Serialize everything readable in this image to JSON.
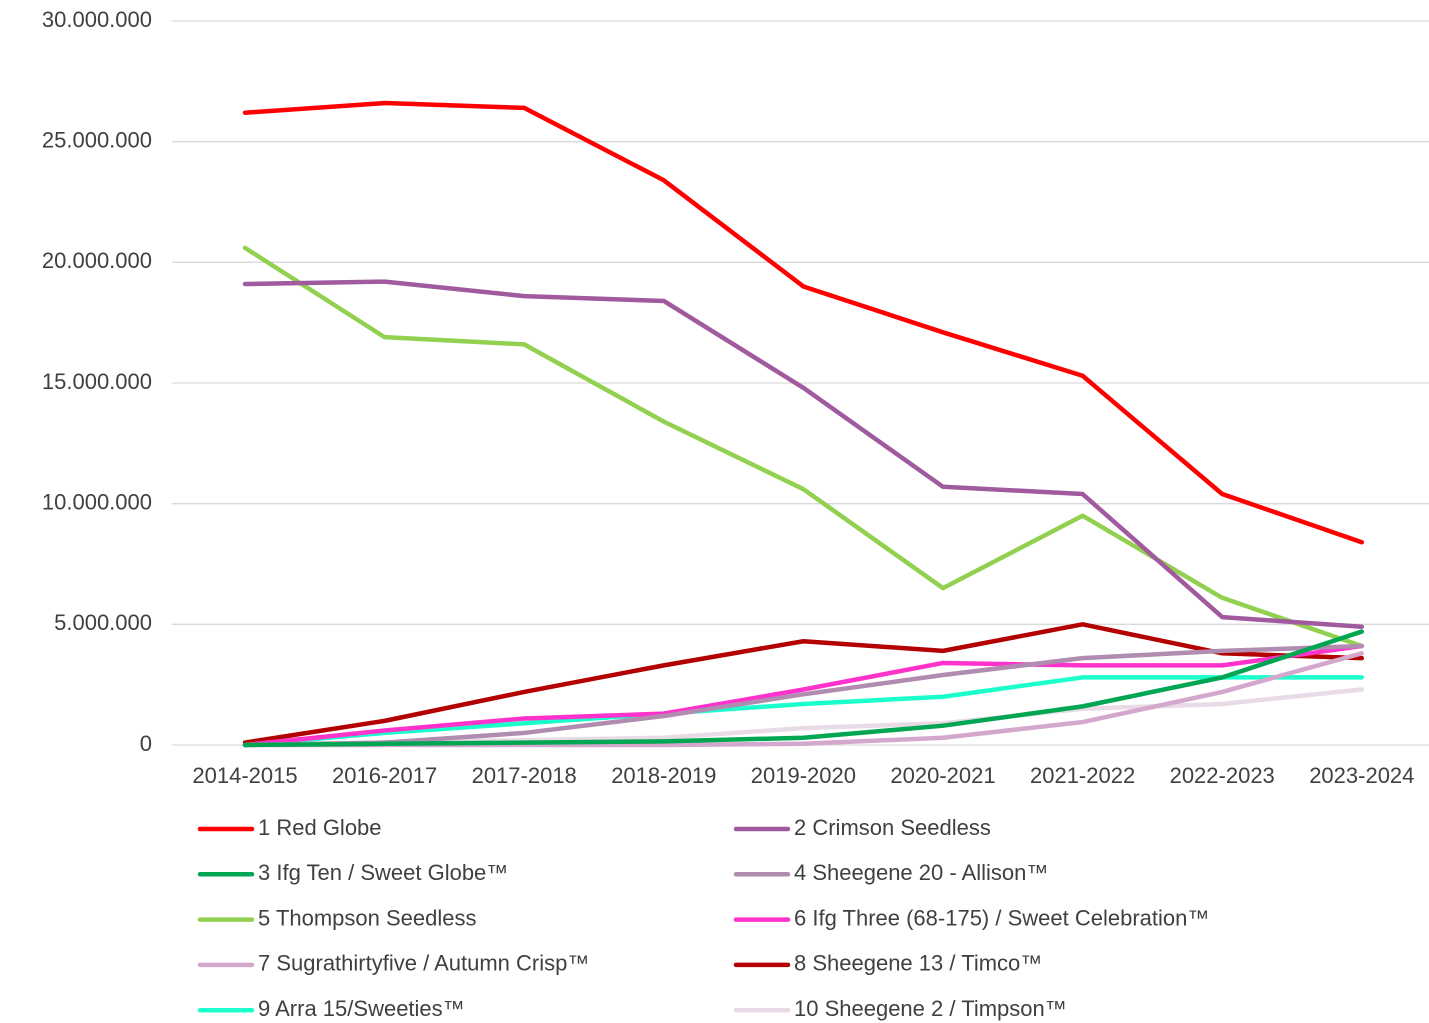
{
  "chart_data": {
    "type": "line",
    "categories": [
      "2014-2015",
      "2016-2017",
      "2017-2018",
      "2018-2019",
      "2019-2020",
      "2020-2021",
      "2021-2022",
      "2022-2023",
      "2023-2024"
    ],
    "ylim": [
      0,
      30000000
    ],
    "yticks": [
      0,
      {
        "value": 5000000,
        "label": "5.000.000"
      },
      {
        "value": 10000000,
        "label": "10.000.000"
      },
      {
        "value": 15000000,
        "label": "15.000.000"
      },
      {
        "value": 20000000,
        "label": "20.000.000"
      },
      {
        "value": 25000000,
        "label": "25.000.000"
      },
      {
        "value": 30000000,
        "label": "30.000.000"
      }
    ],
    "grid": true,
    "legend": "bottom",
    "series": [
      {
        "name": "1 Red Globe",
        "color": "#ff0000",
        "values": [
          26200000,
          26600000,
          26400000,
          23400000,
          19000000,
          17100000,
          15300000,
          10400000,
          8400000
        ]
      },
      {
        "name": "2 Crimson Seedless",
        "color": "#a05a9e",
        "values": [
          19100000,
          19200000,
          18600000,
          18400000,
          14800000,
          10700000,
          10400000,
          5300000,
          4900000
        ]
      },
      {
        "name": "3 Ifg Ten / Sweet Globe™",
        "color": "#00a651",
        "values": [
          0,
          50000,
          100000,
          150000,
          300000,
          800000,
          1600000,
          2800000,
          4700000
        ]
      },
      {
        "name": "4 Sheegene 20 - Allison™",
        "color": "#b08cb0",
        "values": [
          0,
          100000,
          500000,
          1200000,
          2100000,
          2900000,
          3600000,
          3900000,
          4100000
        ]
      },
      {
        "name": "5 Thompson Seedless",
        "color": "#92d050",
        "values": [
          20600000,
          16900000,
          16600000,
          13400000,
          10600000,
          6500000,
          9500000,
          6100000,
          4100000
        ]
      },
      {
        "name": "6 Ifg Three (68-175) / Sweet Celebration™",
        "color": "#ff33cc",
        "values": [
          0,
          600000,
          1100000,
          1300000,
          2300000,
          3400000,
          3300000,
          3300000,
          4100000
        ]
      },
      {
        "name": "7 Sugrathirtyfive / Autumn Crisp™",
        "color": "#d4a8cc",
        "values": [
          0,
          0,
          0,
          0,
          50000,
          300000,
          950000,
          2200000,
          3800000
        ]
      },
      {
        "name": "8 Sheegene 13 / Timco™",
        "color": "#b30000",
        "values": [
          100000,
          1000000,
          2200000,
          3300000,
          4300000,
          3900000,
          5000000,
          3800000,
          3600000
        ]
      },
      {
        "name": "9 Arra 15/Sweeties™",
        "color": "#1affcc",
        "values": [
          0,
          500000,
          900000,
          1300000,
          1700000,
          2000000,
          2800000,
          2800000,
          2800000
        ]
      },
      {
        "name": "10 Sheegene 2 / Timpson™",
        "color": "#e8dbe6",
        "values": [
          0,
          100000,
          200000,
          300000,
          700000,
          900000,
          1500000,
          1700000,
          2300000
        ]
      }
    ]
  }
}
